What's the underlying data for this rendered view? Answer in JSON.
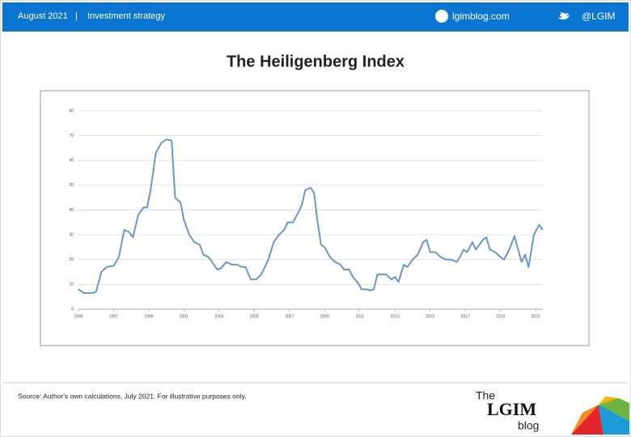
{
  "header": {
    "date": "August 2021",
    "separator": "|",
    "section": "Investment strategy",
    "website": "lgimblog.com",
    "twitter": "@LGIM"
  },
  "chart_data": {
    "type": "line",
    "title": "The Heiligenberg Index",
    "x": [
      1995.0,
      1995.3,
      1995.8,
      1996.0,
      1996.3,
      1996.6,
      1997.0,
      1997.3,
      1997.6,
      1997.9,
      1998.1,
      1998.4,
      1998.7,
      1998.9,
      1999.1,
      1999.4,
      1999.7,
      2000.0,
      2000.3,
      2000.5,
      2000.8,
      2001.0,
      2001.3,
      2001.6,
      2001.9,
      2002.1,
      2002.4,
      2002.7,
      2002.9,
      2003.1,
      2003.4,
      2003.7,
      2004.0,
      2004.3,
      2004.5,
      2004.8,
      2005.1,
      2005.4,
      2005.8,
      2006.1,
      2006.4,
      2006.7,
      2006.9,
      2007.2,
      2007.5,
      2007.7,
      2007.9,
      2008.2,
      2008.4,
      2008.6,
      2008.8,
      2009.0,
      2009.3,
      2009.6,
      2009.9,
      2010.1,
      2010.4,
      2010.6,
      2010.9,
      2011.1,
      2011.4,
      2011.6,
      2011.8,
      2012.0,
      2012.3,
      2012.5,
      2012.8,
      2013.0,
      2013.2,
      2013.5,
      2013.7,
      2014.0,
      2014.3,
      2014.6,
      2014.8,
      2015.0,
      2015.3,
      2015.6,
      2015.9,
      2016.2,
      2016.5,
      2016.7,
      2016.9,
      2017.1,
      2017.4,
      2017.6,
      2018.0,
      2018.2,
      2018.4,
      2018.7,
      2019.0,
      2019.2,
      2019.5,
      2019.8,
      2020.2,
      2020.4,
      2020.6,
      2020.9,
      2021.2,
      2021.4
    ],
    "series": [
      {
        "name": "Heiligenberg Index",
        "color": "#6a97c9",
        "values": [
          8,
          6.5,
          6.5,
          7,
          15,
          17,
          17.5,
          21,
          32,
          31,
          29,
          38,
          41,
          41,
          48,
          63,
          67,
          68.5,
          68,
          45,
          43,
          36,
          30,
          27,
          26,
          22,
          21,
          18,
          16,
          16.5,
          19,
          18,
          18,
          17,
          17,
          12,
          12,
          14,
          20,
          27,
          30,
          32,
          35,
          35,
          39,
          42,
          48,
          49,
          47,
          35,
          26,
          25,
          21,
          19,
          18,
          16,
          16,
          13,
          10.5,
          8,
          8,
          7.5,
          8,
          14,
          14,
          14,
          12,
          13,
          11,
          18,
          17,
          20,
          22,
          27,
          28,
          23,
          23,
          21,
          20,
          20,
          19,
          21,
          24,
          23,
          27,
          24,
          28,
          29,
          24,
          23,
          21,
          20,
          24,
          29.5,
          19,
          22,
          17,
          30,
          34,
          32
        ]
      }
    ],
    "xlim": [
      1995,
      2021.4
    ],
    "xticks": [
      1995,
      1997,
      1999,
      2001,
      2003,
      2005,
      2007,
      2009,
      2011,
      2013,
      2015,
      2017,
      2019,
      2021
    ],
    "ylim": [
      0,
      80
    ],
    "yticks": [
      0,
      10,
      20,
      30,
      40,
      50,
      60,
      70,
      80
    ],
    "grid": true,
    "source": "Source: Author's own calculations, July 2021. For illustrative purposes only."
  },
  "logo": {
    "the": "The",
    "brand": "LGIM",
    "blog": "blog"
  }
}
